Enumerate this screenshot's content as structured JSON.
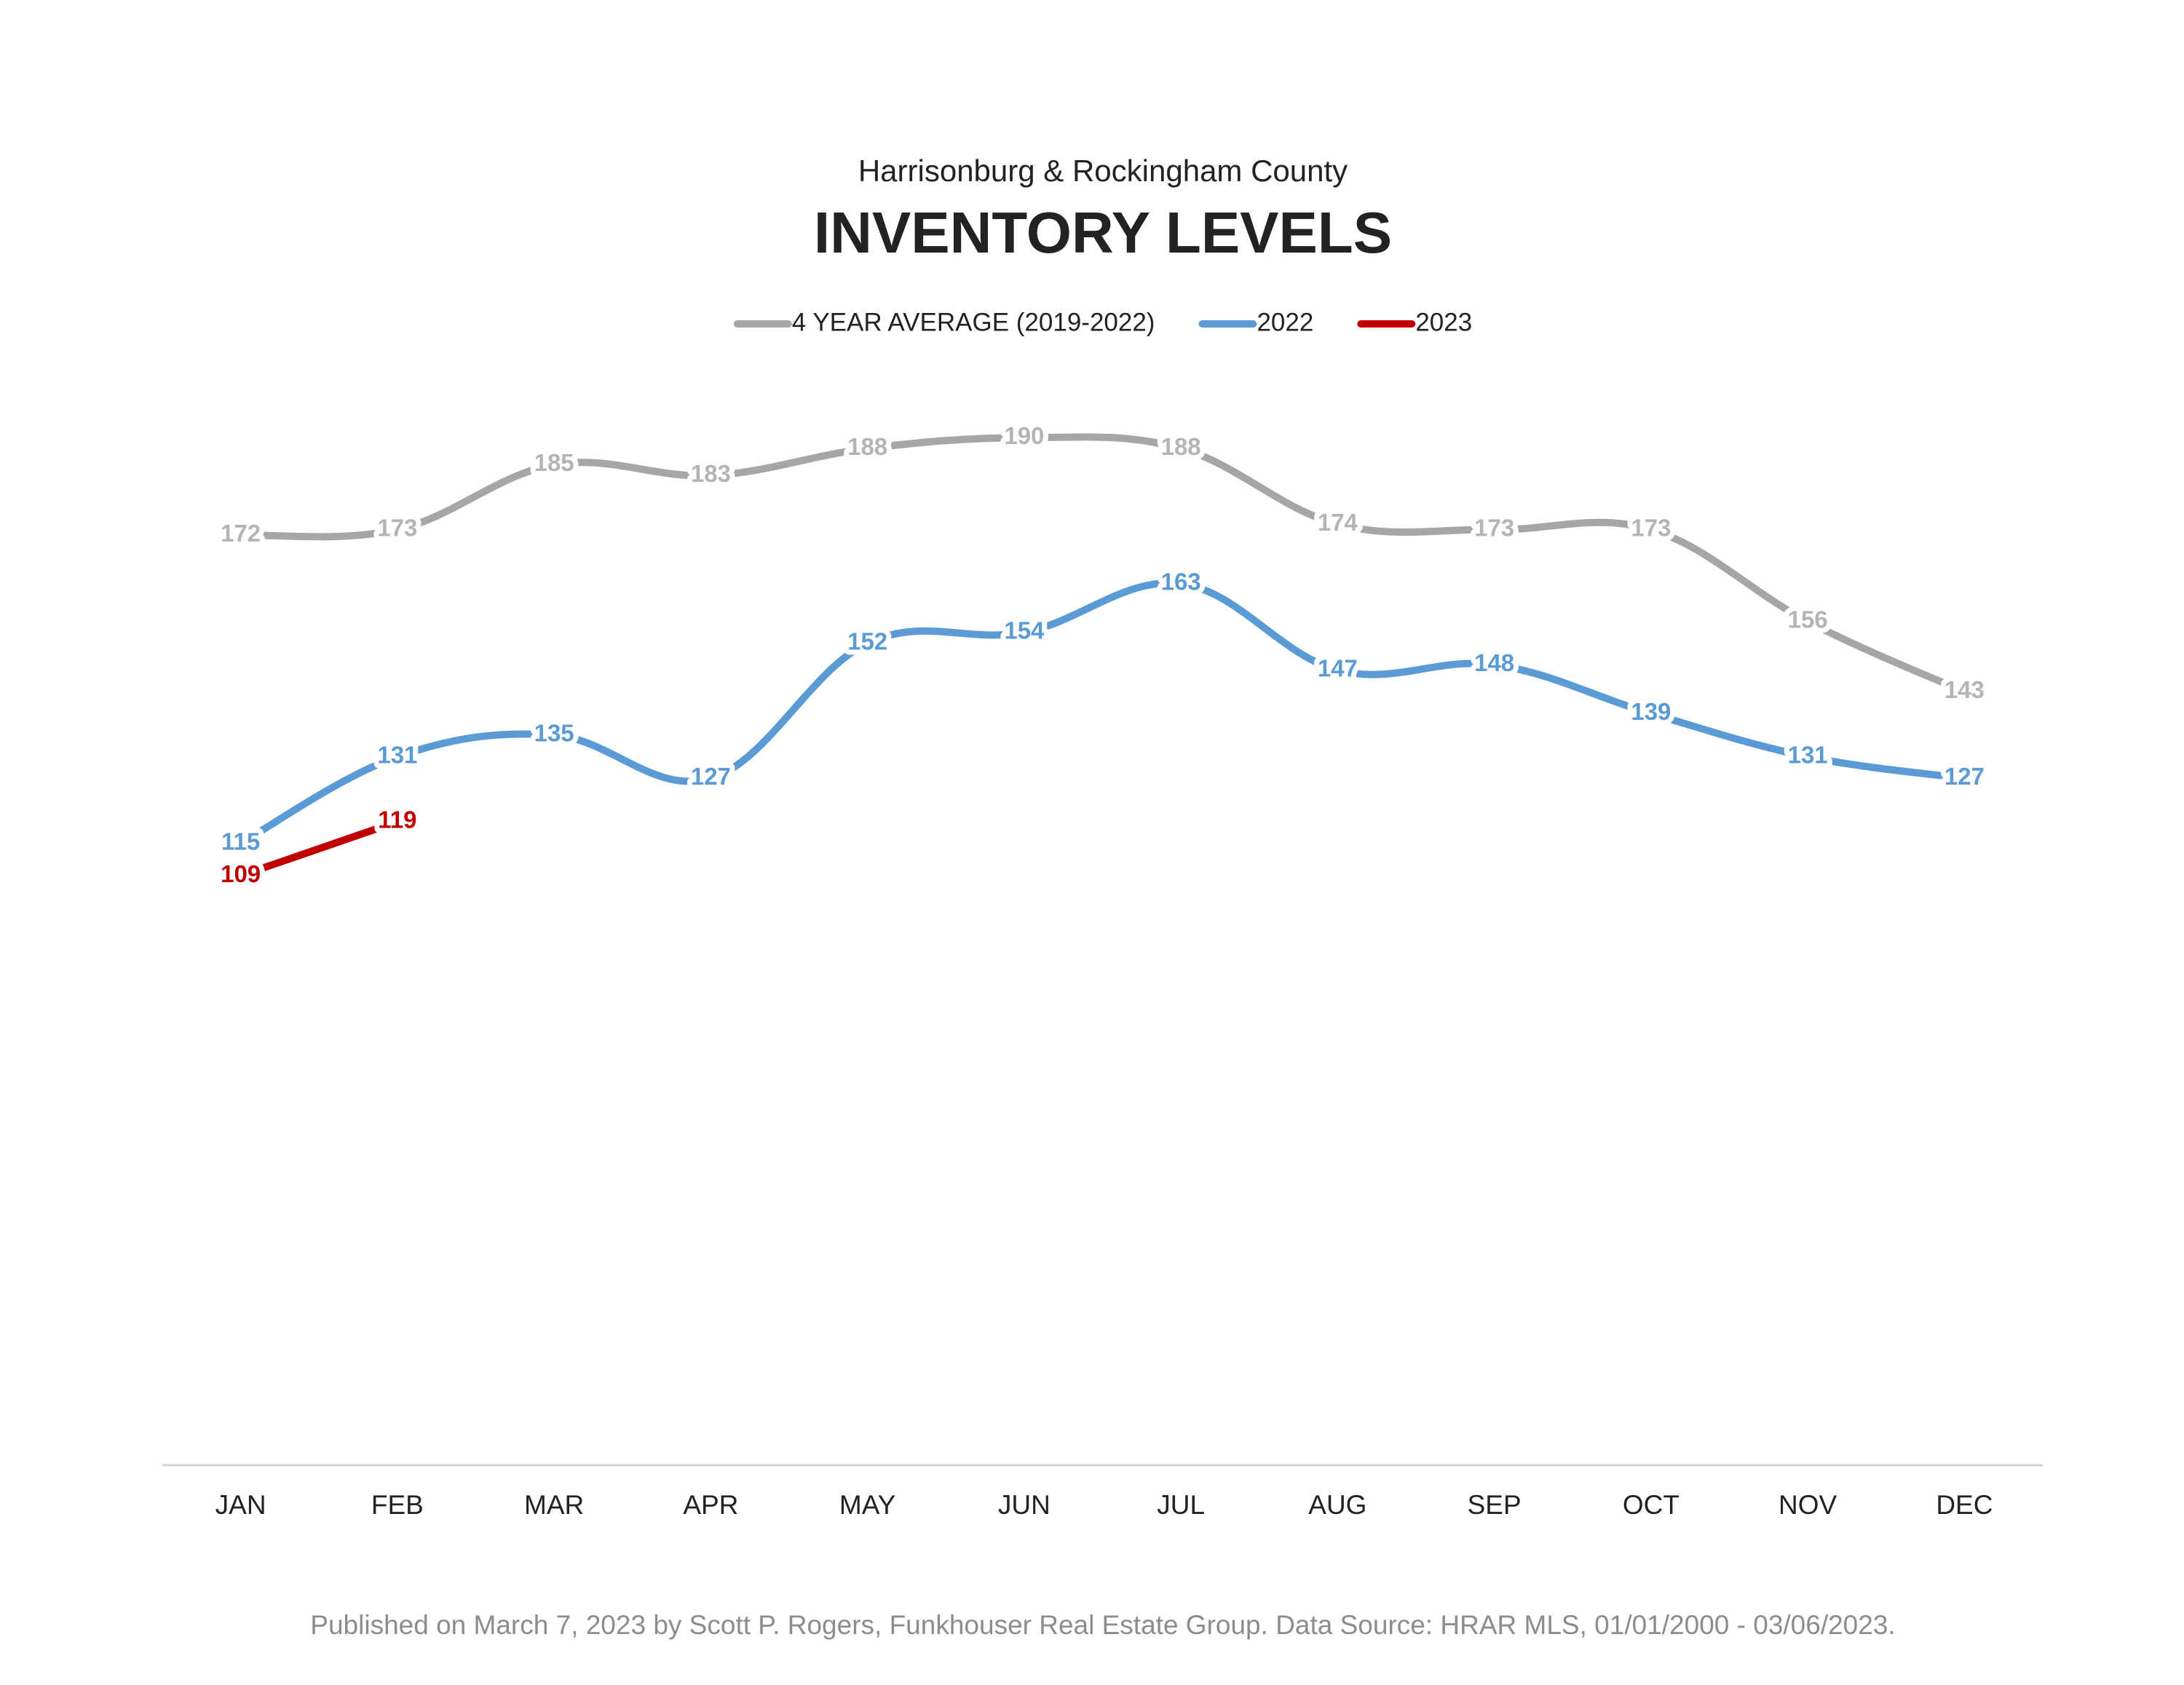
{
  "chart_data": {
    "type": "line",
    "subtitle": "Harrisonburg & Rockingham County",
    "title": "INVENTORY LEVELS",
    "categories": [
      "JAN",
      "FEB",
      "MAR",
      "APR",
      "MAY",
      "JUN",
      "JUL",
      "AUG",
      "SEP",
      "OCT",
      "NOV",
      "DEC"
    ],
    "series": [
      {
        "name": "4 YEAR AVERAGE (2019-2022)",
        "color": "#a6a6a6",
        "label_color": "#b4b4b4",
        "values": [
          172,
          173,
          185,
          183,
          188,
          190,
          188,
          174,
          173,
          173,
          156,
          143
        ]
      },
      {
        "name": "2022",
        "color": "#5b9bd5",
        "label_color": "#5b9bd5",
        "values": [
          115,
          131,
          135,
          127,
          152,
          154,
          163,
          147,
          148,
          139,
          131,
          127
        ]
      },
      {
        "name": "2023",
        "color": "#c00000",
        "label_color": "#c00000",
        "values": [
          109,
          119,
          null,
          null,
          null,
          null,
          null,
          null,
          null,
          null,
          null,
          null
        ]
      }
    ],
    "ylim": [
      0,
      200
    ],
    "legend": "top",
    "footnote": "Published on March 7, 2023 by Scott P. Rogers, Funkhouser Real Estate Group. Data Source: HRAR MLS, 01/01/2000 - 03/06/2023."
  }
}
